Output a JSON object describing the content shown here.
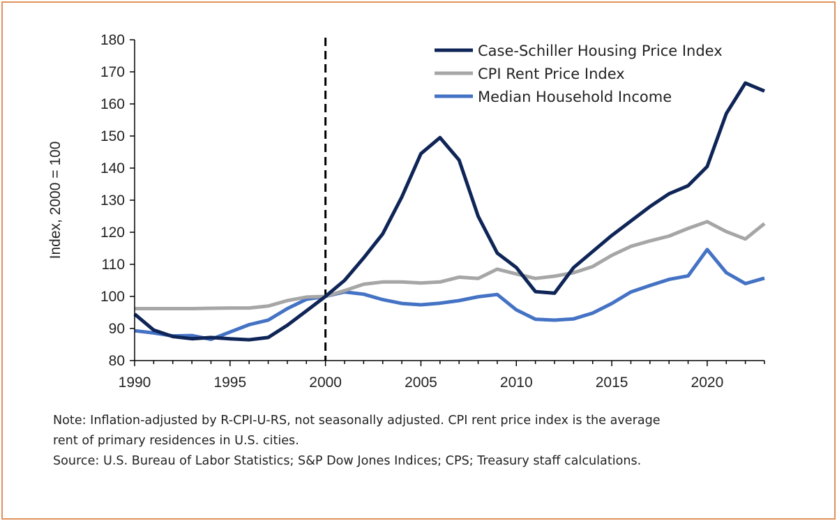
{
  "chart_data": {
    "type": "line",
    "ylabel": "Index, 2000 = 100",
    "xlabel": "",
    "xlim": [
      1990,
      2023
    ],
    "ylim": [
      80,
      180
    ],
    "x_ticks": [
      1990,
      1995,
      2000,
      2005,
      2010,
      2015,
      2020
    ],
    "y_ticks": [
      80,
      90,
      100,
      110,
      120,
      130,
      140,
      150,
      160,
      170,
      180
    ],
    "grid": false,
    "legend_position": "top-right",
    "reference_line": {
      "x": 2000,
      "style": "dashed"
    },
    "x": [
      1990,
      1991,
      1992,
      1993,
      1994,
      1995,
      1996,
      1997,
      1998,
      1999,
      2000,
      2001,
      2002,
      2003,
      2004,
      2005,
      2006,
      2007,
      2008,
      2009,
      2010,
      2011,
      2012,
      2013,
      2014,
      2015,
      2016,
      2017,
      2018,
      2019,
      2020,
      2021,
      2022,
      2023
    ],
    "series": [
      {
        "name": "Case-Schiller Housing Price Index",
        "color": "#0F2557",
        "values": [
          94.5,
          89.5,
          87.5,
          86.8,
          87.2,
          86.8,
          86.5,
          87.2,
          91.0,
          95.5,
          100.0,
          105.0,
          112.0,
          119.5,
          131.0,
          144.5,
          149.5,
          142.5,
          125.0,
          113.5,
          109.0,
          101.5,
          101.0,
          109.0,
          114.0,
          119.0,
          123.5,
          128.0,
          132.0,
          134.5,
          140.5,
          157.0,
          166.5,
          164.0
        ]
      },
      {
        "name": "CPI Rent Price Index",
        "color": "#A6A6A6",
        "values": [
          96.2,
          96.2,
          96.2,
          96.2,
          96.3,
          96.4,
          96.4,
          97.0,
          98.7,
          99.8,
          100.0,
          101.8,
          103.8,
          104.5,
          104.5,
          104.2,
          104.5,
          106.0,
          105.6,
          108.5,
          107.0,
          105.6,
          106.3,
          107.4,
          109.3,
          112.8,
          115.6,
          117.3,
          118.8,
          121.2,
          123.3,
          120.2,
          117.9,
          122.7
        ]
      },
      {
        "name": "Median Household Income",
        "color": "#4472C4",
        "values": [
          89.3,
          88.6,
          87.7,
          87.8,
          86.6,
          88.9,
          91.2,
          92.6,
          96.2,
          99.1,
          100.0,
          101.4,
          100.7,
          99.0,
          97.8,
          97.4,
          97.9,
          98.7,
          99.9,
          100.6,
          95.8,
          92.9,
          92.6,
          93.0,
          94.8,
          97.8,
          101.4,
          103.4,
          105.3,
          106.4,
          114.6,
          107.4,
          104.0,
          105.7
        ]
      }
    ]
  },
  "notes": {
    "line1": "Note:  Inflation-adjusted by R-CPI-U-RS, not seasonally adjusted. CPI rent price index is the average",
    "line2": "rent of primary residences in U.S. cities.",
    "line3": "Source: U.S. Bureau of Labor Statistics; S&P Dow Jones Indices; CPS; Treasury staff calculations."
  }
}
